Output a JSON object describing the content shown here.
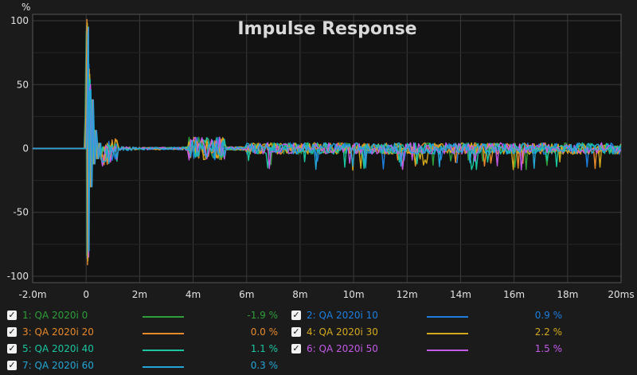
{
  "chart_data": {
    "type": "line",
    "title": "Impulse Response",
    "ylabel": "%",
    "xlabel": "",
    "xlim": [
      -2,
      20
    ],
    "ylim": [
      -105,
      105
    ],
    "xticks": [
      -2,
      0,
      2,
      4,
      6,
      8,
      10,
      12,
      14,
      16,
      18,
      20
    ],
    "xtick_labels": [
      "-2.0m",
      "0",
      "2m",
      "4m",
      "6m",
      "8m",
      "10m",
      "12m",
      "14m",
      "16m",
      "18m",
      "20ms"
    ],
    "yticks": [
      100,
      50,
      0,
      -50,
      -100
    ],
    "ytick_labels": [
      "100",
      "50",
      "0",
      "-50",
      "-100"
    ],
    "grid": true,
    "background": "#121212",
    "series": [
      {
        "name": "1: QA 2020i 0",
        "value_label": "-1.9 %",
        "color": "#2e9e3a",
        "peak": 92,
        "trough": -84
      },
      {
        "name": "2: QA 2020i 10",
        "value_label": "0.9 %",
        "color": "#1c7fe0",
        "peak": 96,
        "trough": -86
      },
      {
        "name": "3: QA 2020i 20",
        "value_label": "0.0 %",
        "color": "#e8892a",
        "peak": 101,
        "trough": -91
      },
      {
        "name": "4: QA 2020i 30",
        "value_label": "2.2 %",
        "color": "#d4a91d",
        "peak": 98,
        "trough": -88
      },
      {
        "name": "5: QA 2020i 40",
        "value_label": "1.1 %",
        "color": "#19c6a0",
        "peak": 90,
        "trough": -82
      },
      {
        "name": "6: QA 2020i 50",
        "value_label": "1.5 %",
        "color": "#c45ae8",
        "peak": 94,
        "trough": -85
      },
      {
        "name": "7: QA 2020i 60",
        "value_label": "0.3 %",
        "color": "#23a6d5",
        "peak": 95,
        "trough": -80
      }
    ]
  },
  "legend": {
    "check_symbol": "✓"
  }
}
